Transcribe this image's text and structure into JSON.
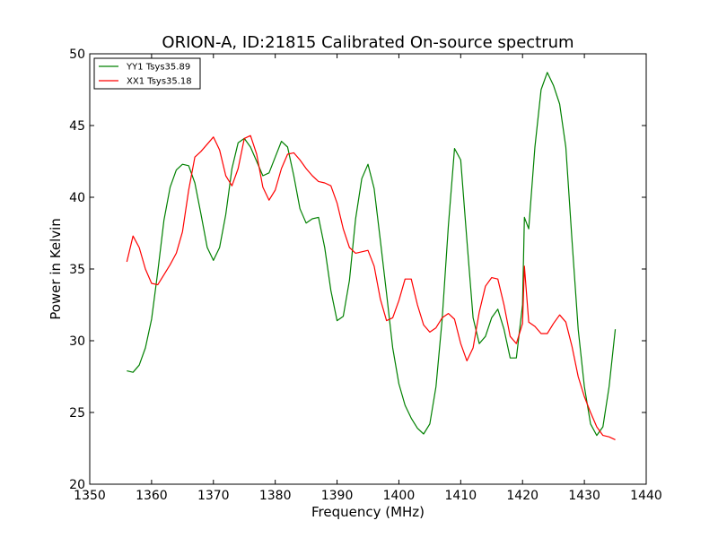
{
  "chart_data": {
    "type": "line",
    "title": "ORION-A, ID:21815 Calibrated On-source spectrum",
    "xlabel": "Frequency (MHz)",
    "ylabel": "Power in Kelvin",
    "xlim": [
      1350,
      1440
    ],
    "ylim": [
      20,
      50
    ],
    "xticks": [
      1350,
      1360,
      1370,
      1380,
      1390,
      1400,
      1410,
      1420,
      1430,
      1440
    ],
    "yticks": [
      20,
      25,
      30,
      35,
      40,
      45,
      50
    ],
    "grid": false,
    "legend_position": "top-left",
    "series": [
      {
        "name": "YY1 Tsys35.89",
        "color": "#008000",
        "points": [
          [
            1356.0,
            27.9
          ],
          [
            1357.0,
            27.8
          ],
          [
            1358.0,
            28.3
          ],
          [
            1359.0,
            29.5
          ],
          [
            1360.0,
            31.5
          ],
          [
            1361.0,
            34.8
          ],
          [
            1362.0,
            38.4
          ],
          [
            1363.0,
            40.7
          ],
          [
            1364.0,
            41.9
          ],
          [
            1365.0,
            42.3
          ],
          [
            1366.0,
            42.2
          ],
          [
            1367.0,
            41.0
          ],
          [
            1368.0,
            38.8
          ],
          [
            1369.0,
            36.5
          ],
          [
            1370.0,
            35.6
          ],
          [
            1371.0,
            36.5
          ],
          [
            1372.0,
            38.8
          ],
          [
            1373.0,
            42.0
          ],
          [
            1374.0,
            43.8
          ],
          [
            1375.0,
            44.1
          ],
          [
            1376.0,
            43.5
          ],
          [
            1377.0,
            42.5
          ],
          [
            1378.0,
            41.5
          ],
          [
            1379.0,
            41.7
          ],
          [
            1380.0,
            42.8
          ],
          [
            1381.0,
            43.9
          ],
          [
            1382.0,
            43.5
          ],
          [
            1383.0,
            41.5
          ],
          [
            1384.0,
            39.2
          ],
          [
            1385.0,
            38.2
          ],
          [
            1386.0,
            38.5
          ],
          [
            1387.0,
            38.6
          ],
          [
            1388.0,
            36.5
          ],
          [
            1389.0,
            33.5
          ],
          [
            1390.0,
            31.4
          ],
          [
            1391.0,
            31.7
          ],
          [
            1392.0,
            34.2
          ],
          [
            1393.0,
            38.5
          ],
          [
            1394.0,
            41.3
          ],
          [
            1395.0,
            42.3
          ],
          [
            1396.0,
            40.6
          ],
          [
            1397.0,
            37.0
          ],
          [
            1398.0,
            33.3
          ],
          [
            1399.0,
            29.5
          ],
          [
            1400.0,
            27.0
          ],
          [
            1401.0,
            25.5
          ],
          [
            1402.0,
            24.6
          ],
          [
            1403.0,
            23.9
          ],
          [
            1404.0,
            23.5
          ],
          [
            1405.0,
            24.2
          ],
          [
            1406.0,
            26.8
          ],
          [
            1407.0,
            31.5
          ],
          [
            1408.0,
            38.0
          ],
          [
            1409.0,
            43.4
          ],
          [
            1410.0,
            42.6
          ],
          [
            1411.0,
            37.0
          ],
          [
            1412.0,
            31.6
          ],
          [
            1413.0,
            29.8
          ],
          [
            1414.0,
            30.3
          ],
          [
            1415.0,
            31.6
          ],
          [
            1416.0,
            32.2
          ],
          [
            1417.0,
            30.8
          ],
          [
            1418.0,
            28.8
          ],
          [
            1419.0,
            28.8
          ],
          [
            1420.0,
            32.5
          ],
          [
            1420.3,
            38.6
          ],
          [
            1421.0,
            37.8
          ],
          [
            1422.0,
            43.5
          ],
          [
            1423.0,
            47.5
          ],
          [
            1424.0,
            48.7
          ],
          [
            1425.0,
            47.8
          ],
          [
            1426.0,
            46.5
          ],
          [
            1427.0,
            43.5
          ],
          [
            1428.0,
            37.0
          ],
          [
            1429.0,
            30.8
          ],
          [
            1430.0,
            26.8
          ],
          [
            1431.0,
            24.2
          ],
          [
            1432.0,
            23.4
          ],
          [
            1433.0,
            24.0
          ],
          [
            1434.0,
            26.8
          ],
          [
            1435.0,
            30.8
          ]
        ]
      },
      {
        "name": "XX1 Tsys35.18",
        "color": "#ff0000",
        "points": [
          [
            1356.0,
            35.5
          ],
          [
            1357.0,
            37.3
          ],
          [
            1358.0,
            36.5
          ],
          [
            1359.0,
            35.0
          ],
          [
            1360.0,
            34.0
          ],
          [
            1361.0,
            33.9
          ],
          [
            1362.0,
            34.6
          ],
          [
            1363.0,
            35.3
          ],
          [
            1364.0,
            36.1
          ],
          [
            1365.0,
            37.6
          ],
          [
            1366.0,
            40.5
          ],
          [
            1367.0,
            42.8
          ],
          [
            1368.0,
            43.2
          ],
          [
            1369.0,
            43.7
          ],
          [
            1370.0,
            44.2
          ],
          [
            1371.0,
            43.3
          ],
          [
            1372.0,
            41.5
          ],
          [
            1373.0,
            40.8
          ],
          [
            1374.0,
            42.0
          ],
          [
            1375.0,
            44.1
          ],
          [
            1376.0,
            44.3
          ],
          [
            1377.0,
            43.0
          ],
          [
            1378.0,
            40.7
          ],
          [
            1379.0,
            39.8
          ],
          [
            1380.0,
            40.5
          ],
          [
            1381.0,
            42.0
          ],
          [
            1382.0,
            43.0
          ],
          [
            1383.0,
            43.1
          ],
          [
            1384.0,
            42.6
          ],
          [
            1385.0,
            42.0
          ],
          [
            1386.0,
            41.5
          ],
          [
            1387.0,
            41.1
          ],
          [
            1388.0,
            41.0
          ],
          [
            1389.0,
            40.8
          ],
          [
            1390.0,
            39.6
          ],
          [
            1391.0,
            37.8
          ],
          [
            1392.0,
            36.5
          ],
          [
            1393.0,
            36.1
          ],
          [
            1394.0,
            36.2
          ],
          [
            1395.0,
            36.3
          ],
          [
            1396.0,
            35.2
          ],
          [
            1397.0,
            32.9
          ],
          [
            1398.0,
            31.4
          ],
          [
            1399.0,
            31.6
          ],
          [
            1400.0,
            32.8
          ],
          [
            1401.0,
            34.3
          ],
          [
            1402.0,
            34.3
          ],
          [
            1403.0,
            32.5
          ],
          [
            1404.0,
            31.1
          ],
          [
            1405.0,
            30.6
          ],
          [
            1406.0,
            30.9
          ],
          [
            1407.0,
            31.6
          ],
          [
            1408.0,
            31.9
          ],
          [
            1409.0,
            31.5
          ],
          [
            1410.0,
            29.8
          ],
          [
            1411.0,
            28.6
          ],
          [
            1412.0,
            29.5
          ],
          [
            1413.0,
            32.0
          ],
          [
            1414.0,
            33.8
          ],
          [
            1415.0,
            34.4
          ],
          [
            1416.0,
            34.3
          ],
          [
            1417.0,
            32.5
          ],
          [
            1418.0,
            30.3
          ],
          [
            1419.0,
            29.8
          ],
          [
            1420.0,
            31.2
          ],
          [
            1420.3,
            35.2
          ],
          [
            1421.0,
            31.3
          ],
          [
            1422.0,
            31.0
          ],
          [
            1423.0,
            30.5
          ],
          [
            1424.0,
            30.5
          ],
          [
            1425.0,
            31.2
          ],
          [
            1426.0,
            31.8
          ],
          [
            1427.0,
            31.3
          ],
          [
            1428.0,
            29.6
          ],
          [
            1429.0,
            27.5
          ],
          [
            1430.0,
            26.1
          ],
          [
            1431.0,
            25.0
          ],
          [
            1432.0,
            24.0
          ],
          [
            1433.0,
            23.4
          ],
          [
            1434.0,
            23.3
          ],
          [
            1435.0,
            23.1
          ]
        ]
      }
    ]
  }
}
